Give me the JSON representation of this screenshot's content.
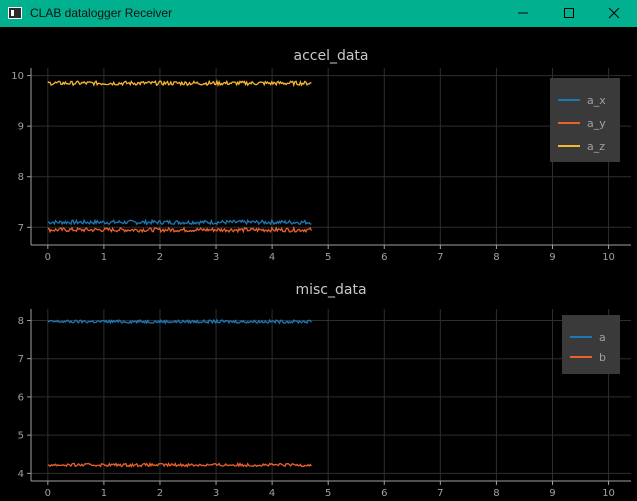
{
  "window": {
    "title": "CLAB datalogger Receiver"
  },
  "icons": {
    "app": "app-window-icon",
    "minimize": "minimize-icon",
    "maximize": "maximize-icon",
    "close": "close-icon"
  },
  "colors": {
    "titlebar": "#00b08f",
    "background": "#000000",
    "axis": "#a0a0a0",
    "grid": "#2e2e2e"
  },
  "chart_data": [
    {
      "type": "line",
      "title": "accel_data",
      "xlabel": "",
      "ylabel": "",
      "xlim": [
        -0.3,
        10.4
      ],
      "ylim": [
        6.65,
        10.15
      ],
      "xticks": [
        0,
        1,
        2,
        3,
        4,
        5,
        6,
        7,
        8,
        9,
        10
      ],
      "yticks": [
        7,
        8,
        9,
        10
      ],
      "grid": true,
      "legend_position": "top-right",
      "x_range": [
        0,
        4.7
      ],
      "series": [
        {
          "name": "a_x",
          "color": "#1f77b4",
          "mean": 7.1,
          "noise": 0.04
        },
        {
          "name": "a_y",
          "color": "#e8612c",
          "mean": 6.95,
          "noise": 0.04
        },
        {
          "name": "a_z",
          "color": "#f5b731",
          "mean": 9.85,
          "noise": 0.04
        }
      ]
    },
    {
      "type": "line",
      "title": "misc_data",
      "xlabel": "",
      "ylabel": "",
      "xlim": [
        -0.3,
        10.4
      ],
      "ylim": [
        3.8,
        8.3
      ],
      "xticks": [
        0,
        1,
        2,
        3,
        4,
        5,
        6,
        7,
        8,
        9,
        10
      ],
      "yticks": [
        4,
        5,
        6,
        7,
        8
      ],
      "grid": true,
      "legend_position": "top-right",
      "x_range": [
        0,
        4.7
      ],
      "series": [
        {
          "name": "a",
          "color": "#1f77b4",
          "mean": 7.97,
          "noise": 0.04
        },
        {
          "name": "b",
          "color": "#e8612c",
          "mean": 4.22,
          "noise": 0.04
        }
      ]
    }
  ]
}
